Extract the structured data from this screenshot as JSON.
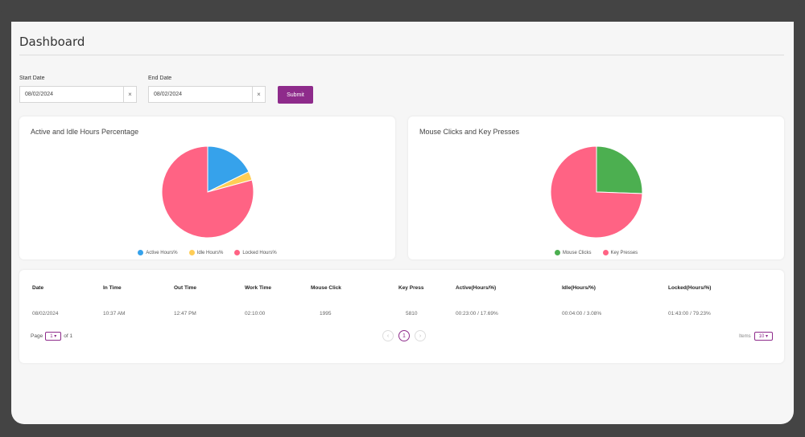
{
  "page": {
    "title": "Dashboard"
  },
  "filters": {
    "start_label": "Start Date",
    "start_value": "08/02/2024",
    "end_label": "End Date",
    "end_value": "08/02/2024",
    "clear_glyph": "×",
    "submit_label": "Submit"
  },
  "charts": [
    {
      "title": "Active and Idle Hours Percentage",
      "chart_data": {
        "type": "pie",
        "labels": [
          "Active Hours%",
          "Idle Hours%",
          "Locked Hours%"
        ],
        "values": [
          17.69,
          3.08,
          79.23
        ],
        "colors": [
          "#36a2eb",
          "#ffcd56",
          "#ff6384"
        ],
        "legend": "bottom"
      }
    },
    {
      "title": "Mouse Clicks and Key Presses",
      "chart_data": {
        "type": "pie",
        "labels": [
          "Mouse Clicks",
          "Key Presses"
        ],
        "values": [
          1995,
          5810
        ],
        "colors": [
          "#4caf50",
          "#ff6384"
        ],
        "legend": "bottom"
      }
    }
  ],
  "table": {
    "headers": [
      "Date",
      "In Time",
      "Out Time",
      "Work Time",
      "Mouse Click",
      "Key Press",
      "Active(Hours/%)",
      "Idle(Hours/%)",
      "Locked(Hours/%)"
    ],
    "rows": [
      [
        "08/02/2024",
        "10:37 AM",
        "12:47 PM",
        "02:10:00",
        "1995",
        "5810",
        "00:23:00 / 17.69%",
        "00:04:00 / 3.08%",
        "01:43:00 / 79.23%"
      ]
    ]
  },
  "pagination": {
    "page_label": "Page",
    "page_value": "1",
    "of_label": "of 1",
    "prev_glyph": "‹",
    "current_page": "1",
    "next_glyph": "›",
    "items_label": "Items",
    "items_value": "10"
  }
}
